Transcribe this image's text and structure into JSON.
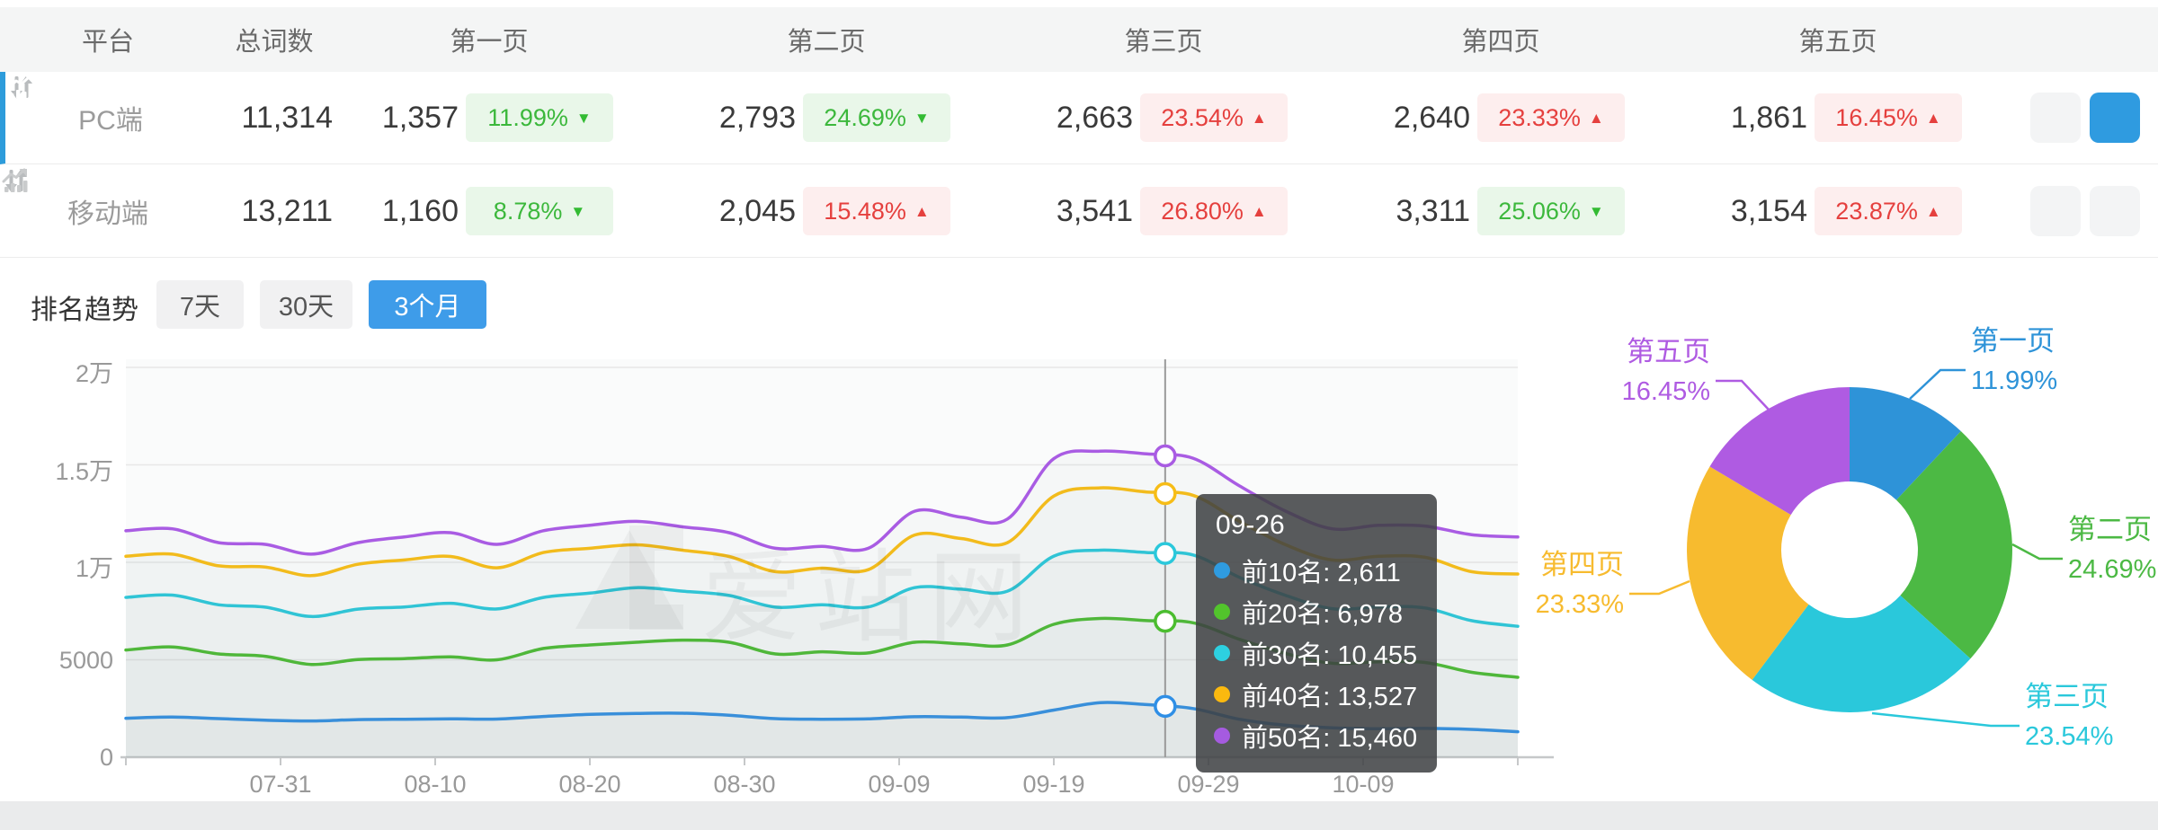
{
  "table": {
    "columns": [
      "平台",
      "总词数",
      "第一页",
      "第二页",
      "第三页",
      "第四页",
      "第五页"
    ],
    "rows": [
      {
        "platform": "PC端",
        "total": "11,314",
        "selected": true,
        "pages": [
          {
            "count": "1,357",
            "pct": "11.99%",
            "dir": "down",
            "tone": "green"
          },
          {
            "count": "2,793",
            "pct": "24.69%",
            "dir": "down",
            "tone": "green"
          },
          {
            "count": "2,663",
            "pct": "23.54%",
            "dir": "up",
            "tone": "red"
          },
          {
            "count": "2,640",
            "pct": "23.33%",
            "dir": "up",
            "tone": "red"
          },
          {
            "count": "1,861",
            "pct": "16.45%",
            "dir": "up",
            "tone": "red"
          }
        ]
      },
      {
        "platform": "移动端",
        "total": "13,211",
        "selected": false,
        "pages": [
          {
            "count": "1,160",
            "pct": "8.78%",
            "dir": "down",
            "tone": "green"
          },
          {
            "count": "2,045",
            "pct": "15.48%",
            "dir": "up",
            "tone": "red"
          },
          {
            "count": "3,541",
            "pct": "26.80%",
            "dir": "up",
            "tone": "red"
          },
          {
            "count": "3,311",
            "pct": "25.06%",
            "dir": "down",
            "tone": "green"
          },
          {
            "count": "3,154",
            "pct": "23.87%",
            "dir": "up",
            "tone": "red"
          }
        ]
      }
    ],
    "row_icons": [
      "sort-arrows-icon",
      "trend-chart-icon"
    ]
  },
  "trend": {
    "label": "排名趋势",
    "tabs": [
      {
        "label": "7天",
        "active": false
      },
      {
        "label": "30天",
        "active": false
      },
      {
        "label": "3个月",
        "active": true
      }
    ]
  },
  "watermark": "爱站网",
  "tooltip": {
    "title": "09-26",
    "items": [
      {
        "name": "前10名",
        "value": "2,611",
        "color": "#2f9be0"
      },
      {
        "name": "前20名",
        "value": "6,978",
        "color": "#52c42c"
      },
      {
        "name": "前30名",
        "value": "10,455",
        "color": "#2dd0e0"
      },
      {
        "name": "前40名",
        "value": "13,527",
        "color": "#fbb90f"
      },
      {
        "name": "前50名",
        "value": "15,460",
        "color": "#a55be0"
      }
    ]
  },
  "chart_data": [
    {
      "type": "line",
      "title": "排名趋势",
      "xlabel": "",
      "ylabel": "",
      "ylim": [
        0,
        20000
      ],
      "grid": true,
      "y_tick_labels": [
        "0",
        "5000",
        "1万",
        "1.5万",
        "2万"
      ],
      "y_tick_values": [
        0,
        5000,
        10000,
        15000,
        20000
      ],
      "x_tick_labels": [
        "07-31",
        "08-10",
        "08-20",
        "08-30",
        "09-09",
        "09-19",
        "09-29",
        "10-09"
      ],
      "x_tick_days": [
        10,
        20,
        30,
        40,
        50,
        60,
        70,
        80
      ],
      "x_range_days": [
        0,
        90
      ],
      "x_days": [
        0,
        3,
        6,
        9,
        12,
        15,
        18,
        21,
        24,
        27,
        30,
        33,
        36,
        39,
        42,
        45,
        48,
        51,
        54,
        57,
        60,
        63,
        66,
        69,
        72,
        75,
        78,
        81,
        84,
        87,
        90
      ],
      "series": [
        {
          "name": "前10名",
          "color": "#2f8fe6",
          "values": [
            2000,
            2060,
            1980,
            1900,
            1860,
            1930,
            1950,
            1970,
            1960,
            2090,
            2200,
            2250,
            2260,
            2150,
            1980,
            1950,
            1970,
            2080,
            2060,
            2030,
            2420,
            2800,
            2700,
            2500,
            1950,
            1640,
            1510,
            1460,
            1480,
            1430,
            1310
          ]
        },
        {
          "name": "前20名",
          "color": "#4bbd2f",
          "values": [
            5500,
            5660,
            5300,
            5180,
            4760,
            5010,
            5060,
            5150,
            5000,
            5580,
            5760,
            5900,
            6010,
            5900,
            5300,
            5410,
            5350,
            5900,
            5820,
            5760,
            6820,
            7120,
            7010,
            6900,
            6050,
            5320,
            4820,
            4900,
            4860,
            4360,
            4100
          ]
        },
        {
          "name": "前30名",
          "color": "#2ac8db",
          "values": [
            8200,
            8320,
            7820,
            7700,
            7220,
            7600,
            7710,
            7900,
            7610,
            8200,
            8420,
            8700,
            8520,
            8300,
            7700,
            7820,
            7710,
            8700,
            8620,
            8520,
            10320,
            10620,
            10500,
            10380,
            9230,
            8300,
            7620,
            7710,
            7660,
            7010,
            6720
          ]
        },
        {
          "name": "前40名",
          "color": "#f7bd17",
          "values": [
            10310,
            10420,
            9820,
            9760,
            9320,
            9900,
            10120,
            10300,
            9720,
            10500,
            10720,
            10900,
            10620,
            10300,
            9520,
            9700,
            9620,
            11400,
            11220,
            11010,
            13400,
            13820,
            13610,
            13440,
            12100,
            10900,
            10120,
            10310,
            10260,
            9520,
            9400
          ]
        },
        {
          "name": "前50名",
          "color": "#a95ce3",
          "values": [
            11620,
            11720,
            11010,
            10920,
            10420,
            11010,
            11300,
            11520,
            10920,
            11620,
            11900,
            12100,
            11820,
            11520,
            10720,
            10820,
            10720,
            12620,
            12320,
            12220,
            15320,
            15700,
            15560,
            15340,
            13920,
            12620,
            11720,
            11900,
            11860,
            11420,
            11300
          ]
        }
      ],
      "hover": {
        "date": "09-26",
        "day": 67.2,
        "values": [
          2611,
          6978,
          10455,
          13527,
          15460
        ]
      }
    },
    {
      "type": "donut",
      "categories": [
        "第一页",
        "第二页",
        "第三页",
        "第四页",
        "第五页"
      ],
      "values": [
        11.99,
        24.69,
        23.54,
        23.33,
        16.45
      ],
      "labels": [
        "11.99%",
        "24.69%",
        "23.54%",
        "23.33%",
        "16.45%"
      ],
      "colors": [
        "#2e93d8",
        "#4cb944",
        "#2ac8db",
        "#f7bb2f",
        "#af5be2"
      ],
      "legend_position": "callout-labels"
    }
  ],
  "colors": {
    "accent_blue": "#2f9be0",
    "selected_row_border": "#2d9cdb",
    "badge_green_text": "#3cb83c",
    "badge_green_bg": "#e9f7e9",
    "badge_red_text": "#e5403e",
    "badge_red_bg": "#fdeeee",
    "header_bg": "#f4f5f5",
    "axis_text": "#999999",
    "tab_active_bg": "#3e9ce9"
  },
  "icons": {
    "sort": "sort-arrows-icon",
    "chart": "trend-chart-icon"
  }
}
